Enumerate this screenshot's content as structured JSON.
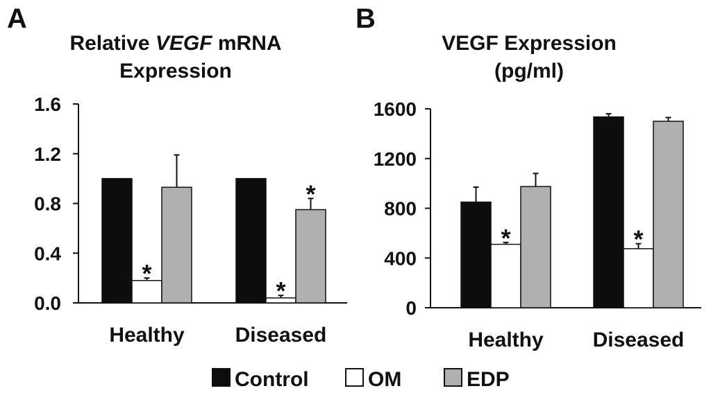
{
  "colors": {
    "Control": "#0d0d0d",
    "OM": "#ffffff",
    "EDP": "#b0b0b0",
    "stroke": "#111111"
  },
  "legend": {
    "items": [
      {
        "name": "Control",
        "color_key": "Control"
      },
      {
        "name": "OM",
        "color_key": "OM"
      },
      {
        "name": "EDP",
        "color_key": "EDP"
      }
    ]
  },
  "chart_data": [
    {
      "panel": "A",
      "type": "bar",
      "title_parts": [
        "Relative ",
        "VEGF",
        " mRNA"
      ],
      "title_line2": "Expression",
      "categories": [
        "Healthy",
        "Diseased"
      ],
      "ylim": [
        0,
        1.6
      ],
      "yticks": [
        "0.0",
        "0.4",
        "0.8",
        "1.2",
        "1.6"
      ],
      "ytick_values": [
        0,
        0.4,
        0.8,
        1.2,
        1.6
      ],
      "series": [
        {
          "name": "Control",
          "values": [
            1.0,
            1.0
          ],
          "errors": [
            0,
            0
          ],
          "sig": [
            false,
            false
          ]
        },
        {
          "name": "OM",
          "values": [
            0.18,
            0.04
          ],
          "errors": [
            0.02,
            0.02
          ],
          "sig": [
            true,
            true
          ]
        },
        {
          "name": "EDP",
          "values": [
            0.93,
            0.75
          ],
          "errors": [
            0.26,
            0.09
          ],
          "sig": [
            false,
            true
          ]
        }
      ],
      "sig_marker": "*"
    },
    {
      "panel": "B",
      "type": "bar",
      "title_parts": [
        "VEGF Expression"
      ],
      "title_line2": "(pg/ml)",
      "categories": [
        "Healthy",
        "Diseased"
      ],
      "ylim": [
        0,
        1600
      ],
      "yticks": [
        "0",
        "400",
        "800",
        "1200",
        "1600"
      ],
      "ytick_values": [
        0,
        400,
        800,
        1200,
        1600
      ],
      "series": [
        {
          "name": "Control",
          "values": [
            850,
            1535
          ],
          "errors": [
            120,
            25
          ],
          "sig": [
            false,
            false
          ]
        },
        {
          "name": "OM",
          "values": [
            510,
            475
          ],
          "errors": [
            15,
            40
          ],
          "sig": [
            true,
            true
          ]
        },
        {
          "name": "EDP",
          "values": [
            975,
            1500
          ],
          "errors": [
            105,
            30
          ],
          "sig": [
            false,
            false
          ]
        }
      ],
      "sig_marker": "*"
    }
  ]
}
